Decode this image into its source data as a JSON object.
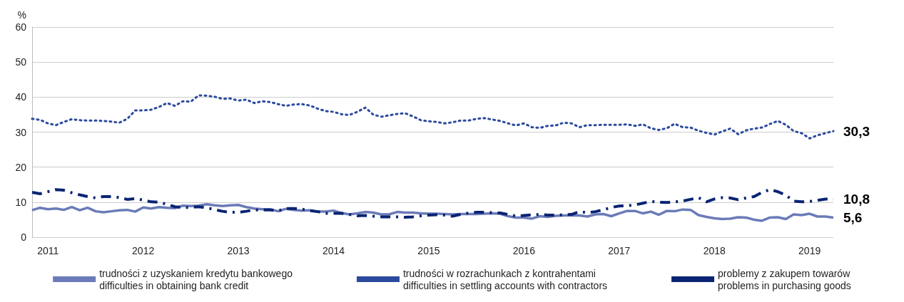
{
  "chart_data": {
    "type": "line",
    "ylabel": "%",
    "categories": [
      null,
      null,
      "2011",
      null,
      null,
      null,
      null,
      null,
      null,
      null,
      null,
      null,
      null,
      null,
      "2012",
      null,
      null,
      null,
      null,
      null,
      null,
      null,
      null,
      null,
      null,
      null,
      "2013",
      null,
      null,
      null,
      null,
      null,
      null,
      null,
      null,
      null,
      null,
      null,
      "2014",
      null,
      null,
      null,
      null,
      null,
      null,
      null,
      null,
      null,
      null,
      null,
      "2015",
      null,
      null,
      null,
      null,
      null,
      null,
      null,
      null,
      null,
      null,
      null,
      "2016",
      null,
      null,
      null,
      null,
      null,
      null,
      null,
      null,
      null,
      null,
      null,
      "2017",
      null,
      null,
      null,
      null,
      null,
      null,
      null,
      null,
      null,
      null,
      null,
      "2018",
      null,
      null,
      null,
      null,
      null,
      null,
      null,
      null,
      null,
      null,
      null,
      "2019",
      null,
      null,
      null
    ],
    "ylim": [
      0,
      60
    ],
    "yticks": [
      0,
      10,
      20,
      30,
      40,
      50,
      60
    ],
    "grid": "y",
    "legend": "bottom",
    "series": [
      {
        "name": "trudności z uzyskaniem kredytu bankowego\ndifficulties in obtaining bank credit",
        "color": "#6b7bb8",
        "line_style": "solid",
        "values": [
          7.7,
          8.4,
          8.0,
          8.2,
          7.8,
          8.6,
          7.7,
          8.4,
          7.4,
          7.1,
          7.4,
          7.7,
          7.8,
          7.3,
          8.5,
          8.2,
          8.6,
          8.4,
          8.3,
          9.0,
          8.9,
          9.0,
          9.4,
          9.1,
          8.9,
          9.1,
          9.2,
          8.6,
          8.2,
          8.0,
          8.0,
          7.4,
          8.1,
          7.8,
          7.6,
          7.7,
          7.3,
          7.3,
          7.6,
          6.9,
          6.5,
          6.8,
          7.2,
          7.0,
          6.5,
          6.5,
          7.2,
          7.0,
          7.0,
          6.8,
          6.7,
          6.7,
          6.6,
          6.5,
          6.6,
          6.6,
          6.6,
          6.7,
          6.8,
          6.7,
          6.0,
          5.6,
          5.6,
          5.3,
          6.0,
          5.8,
          6.1,
          6.2,
          6.2,
          6.2,
          5.9,
          6.5,
          6.6,
          6.0,
          6.8,
          7.5,
          7.5,
          6.8,
          7.3,
          6.4,
          7.5,
          7.4,
          7.9,
          7.8,
          6.3,
          5.8,
          5.4,
          5.2,
          5.3,
          5.7,
          5.6,
          5.0,
          4.7,
          5.6,
          5.7,
          5.2,
          6.5,
          6.3,
          6.7,
          5.9,
          5.9,
          5.6
        ],
        "value_labels": [
          null,
          null,
          null,
          null,
          null,
          null,
          null,
          null,
          null,
          null,
          null,
          null,
          null,
          null,
          null,
          null,
          null,
          null,
          null,
          null,
          null,
          null,
          null,
          null,
          null,
          null,
          null,
          null,
          null,
          null,
          null,
          null,
          null,
          null,
          null,
          null,
          null,
          null,
          null,
          null,
          null,
          null,
          null,
          null,
          null,
          null,
          null,
          null,
          null,
          null,
          null,
          null,
          null,
          null,
          null,
          null,
          null,
          null,
          null,
          null,
          null,
          null,
          null,
          null,
          null,
          null,
          null,
          null,
          null,
          null,
          null,
          null,
          null,
          null,
          null,
          null,
          null,
          null,
          null,
          null,
          null,
          null,
          null,
          null,
          null,
          null,
          null,
          null,
          null,
          null,
          null,
          null,
          null,
          null,
          null,
          null,
          null,
          null,
          null,
          null,
          null,
          "5,6"
        ]
      },
      {
        "name": "trudności w rozrachunkach z kontrahentami\ndifficulties in settling accounts with contractors",
        "color": "#2b4a9e",
        "line_style": "dotted",
        "values": [
          33.8,
          33.5,
          32.5,
          32.0,
          32.9,
          33.7,
          33.4,
          33.3,
          33.3,
          33.2,
          33.0,
          32.7,
          33.8,
          36.2,
          36.2,
          36.4,
          37.2,
          38.3,
          37.5,
          38.8,
          38.7,
          40.5,
          40.4,
          40.1,
          39.5,
          39.6,
          39.0,
          39.3,
          38.3,
          38.8,
          38.6,
          38.0,
          37.5,
          37.9,
          38.0,
          37.6,
          36.7,
          36.0,
          35.8,
          35.1,
          34.9,
          35.8,
          37.0,
          35.0,
          34.4,
          34.8,
          35.2,
          35.4,
          34.5,
          33.4,
          33.1,
          32.9,
          32.5,
          32.8,
          33.3,
          33.3,
          33.8,
          34.0,
          33.6,
          33.2,
          32.5,
          31.9,
          32.5,
          31.4,
          31.2,
          31.8,
          31.9,
          32.7,
          32.5,
          31.4,
          32.0,
          32.0,
          32.1,
          32.1,
          32.1,
          32.2,
          31.8,
          32.2,
          31.1,
          30.6,
          31.1,
          32.4,
          31.4,
          31.3,
          30.4,
          29.8,
          29.3,
          30.2,
          31.0,
          29.4,
          30.5,
          31.0,
          31.3,
          32.3,
          33.2,
          32.1,
          30.3,
          29.7,
          28.2,
          29.1,
          29.7,
          30.3
        ],
        "value_labels": [
          null,
          null,
          null,
          null,
          null,
          null,
          null,
          null,
          null,
          null,
          null,
          null,
          null,
          null,
          null,
          null,
          null,
          null,
          null,
          null,
          null,
          null,
          null,
          null,
          null,
          null,
          null,
          null,
          null,
          null,
          null,
          null,
          null,
          null,
          null,
          null,
          null,
          null,
          null,
          null,
          null,
          null,
          null,
          null,
          null,
          null,
          null,
          null,
          null,
          null,
          null,
          null,
          null,
          null,
          null,
          null,
          null,
          null,
          null,
          null,
          null,
          null,
          null,
          null,
          null,
          null,
          null,
          null,
          null,
          null,
          null,
          null,
          null,
          null,
          null,
          null,
          null,
          null,
          null,
          null,
          null,
          null,
          null,
          null,
          null,
          null,
          null,
          null,
          null,
          null,
          null,
          null,
          null,
          null,
          null,
          null,
          null,
          null,
          null,
          null,
          null,
          "30,3"
        ]
      },
      {
        "name": "problemy z zakupem towarów\nproblems in purchasing goods",
        "color": "#0a2473",
        "line_style": "dashed",
        "values": [
          12.8,
          12.4,
          13.0,
          13.6,
          13.4,
          12.7,
          12.1,
          11.6,
          11.2,
          11.6,
          11.6,
          11.3,
          10.8,
          11.0,
          10.6,
          10.1,
          10.0,
          9.4,
          8.7,
          8.5,
          8.5,
          8.7,
          8.4,
          7.9,
          7.4,
          7.1,
          7.1,
          7.4,
          7.8,
          7.8,
          7.8,
          7.5,
          8.2,
          8.2,
          8.0,
          7.6,
          7.3,
          6.8,
          6.8,
          6.8,
          6.5,
          6.1,
          6.2,
          6.0,
          5.8,
          5.8,
          5.8,
          5.7,
          5.8,
          6.1,
          6.3,
          6.4,
          6.3,
          6.0,
          6.5,
          6.9,
          7.1,
          7.1,
          7.0,
          6.9,
          6.5,
          6.0,
          6.2,
          6.4,
          6.5,
          6.3,
          6.3,
          6.4,
          6.5,
          7.3,
          7.0,
          7.3,
          7.8,
          8.5,
          8.9,
          9.0,
          9.2,
          9.7,
          10.2,
          10.0,
          9.9,
          10.1,
          10.3,
          10.8,
          11.3,
          10.1,
          10.9,
          11.3,
          11.2,
          10.7,
          11.2,
          11.6,
          12.8,
          13.6,
          13.0,
          12.0,
          10.3,
          10.1,
          10.2,
          10.5,
          10.9,
          10.8
        ],
        "value_labels": [
          null,
          null,
          null,
          null,
          null,
          null,
          null,
          null,
          null,
          null,
          null,
          null,
          null,
          null,
          null,
          null,
          null,
          null,
          null,
          null,
          null,
          null,
          null,
          null,
          null,
          null,
          null,
          null,
          null,
          null,
          null,
          null,
          null,
          null,
          null,
          null,
          null,
          null,
          null,
          null,
          null,
          null,
          null,
          null,
          null,
          null,
          null,
          null,
          null,
          null,
          null,
          null,
          null,
          null,
          null,
          null,
          null,
          null,
          null,
          null,
          null,
          null,
          null,
          null,
          null,
          null,
          null,
          null,
          null,
          null,
          null,
          null,
          null,
          null,
          null,
          null,
          null,
          null,
          null,
          null,
          null,
          null,
          null,
          null,
          null,
          null,
          null,
          null,
          null,
          null,
          null,
          null,
          null,
          null,
          null,
          null,
          null,
          null,
          null,
          null,
          null,
          "10,8"
        ]
      }
    ]
  }
}
